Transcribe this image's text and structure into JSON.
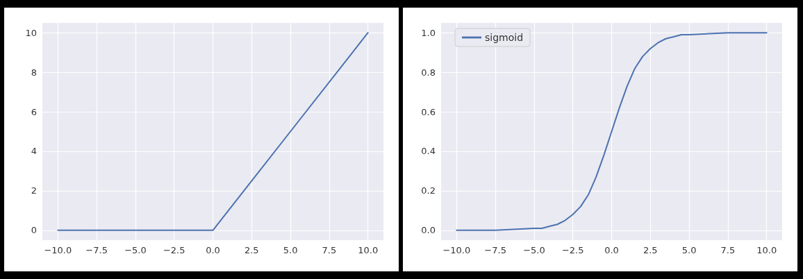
{
  "chart_data": [
    {
      "type": "line",
      "x": [
        -10,
        -5,
        -0.2,
        0,
        0.2,
        5,
        10
      ],
      "series": [
        {
          "color": "#4c72b0",
          "values": [
            0,
            0,
            0,
            0,
            0.2,
            5,
            10
          ]
        }
      ],
      "xlim": [
        -11,
        11
      ],
      "ylim": [
        -0.5,
        10.5
      ],
      "xticks": [
        {
          "value": -10,
          "label": "−10.0"
        },
        {
          "value": -7.5,
          "label": "−7.5"
        },
        {
          "value": -5,
          "label": "−5.0"
        },
        {
          "value": -2.5,
          "label": "−2.5"
        },
        {
          "value": 0,
          "label": "0.0"
        },
        {
          "value": 2.5,
          "label": "2.5"
        },
        {
          "value": 5,
          "label": "5.0"
        },
        {
          "value": 7.5,
          "label": "7.5"
        },
        {
          "value": 10,
          "label": "10.0"
        }
      ],
      "yticks": [
        0,
        2,
        4,
        6,
        8,
        10
      ],
      "grid": true,
      "legend": false,
      "marker": "none",
      "line_style": "solid"
    },
    {
      "type": "line",
      "x": [
        -10,
        -7.5,
        -5,
        -4.5,
        -4,
        -3.5,
        -3,
        -2.5,
        -2,
        -1.5,
        -1,
        -0.5,
        0,
        0.5,
        1,
        1.5,
        2,
        2.5,
        3,
        3.5,
        4,
        4.5,
        5,
        7.5,
        10
      ],
      "series": [
        {
          "name": "sigmoid",
          "color": "#4c72b0",
          "values": [
            0.0,
            0.0,
            0.01,
            0.01,
            0.02,
            0.03,
            0.05,
            0.08,
            0.12,
            0.18,
            0.27,
            0.38,
            0.5,
            0.62,
            0.73,
            0.82,
            0.88,
            0.92,
            0.95,
            0.97,
            0.98,
            0.99,
            0.99,
            1.0,
            1.0
          ]
        }
      ],
      "xlim": [
        -11,
        11
      ],
      "ylim": [
        -0.05,
        1.05
      ],
      "xticks": [
        {
          "value": -10,
          "label": "−10.0"
        },
        {
          "value": -7.5,
          "label": "−7.5"
        },
        {
          "value": -5,
          "label": "−5.0"
        },
        {
          "value": -2.5,
          "label": "−2.5"
        },
        {
          "value": 0,
          "label": "0.0"
        },
        {
          "value": 2.5,
          "label": "2.5"
        },
        {
          "value": 5,
          "label": "5.0"
        },
        {
          "value": 7.5,
          "label": "7.5"
        },
        {
          "value": 10,
          "label": "10.0"
        }
      ],
      "yticks": [
        {
          "value": 0,
          "label": "0.0"
        },
        {
          "value": 0.2,
          "label": "0.2"
        },
        {
          "value": 0.4,
          "label": "0.4"
        },
        {
          "value": 0.6,
          "label": "0.6"
        },
        {
          "value": 0.8,
          "label": "0.8"
        },
        {
          "value": 1,
          "label": "1.0"
        }
      ],
      "grid": true,
      "legend": "top left",
      "marker": "none",
      "line_style": "solid"
    }
  ]
}
